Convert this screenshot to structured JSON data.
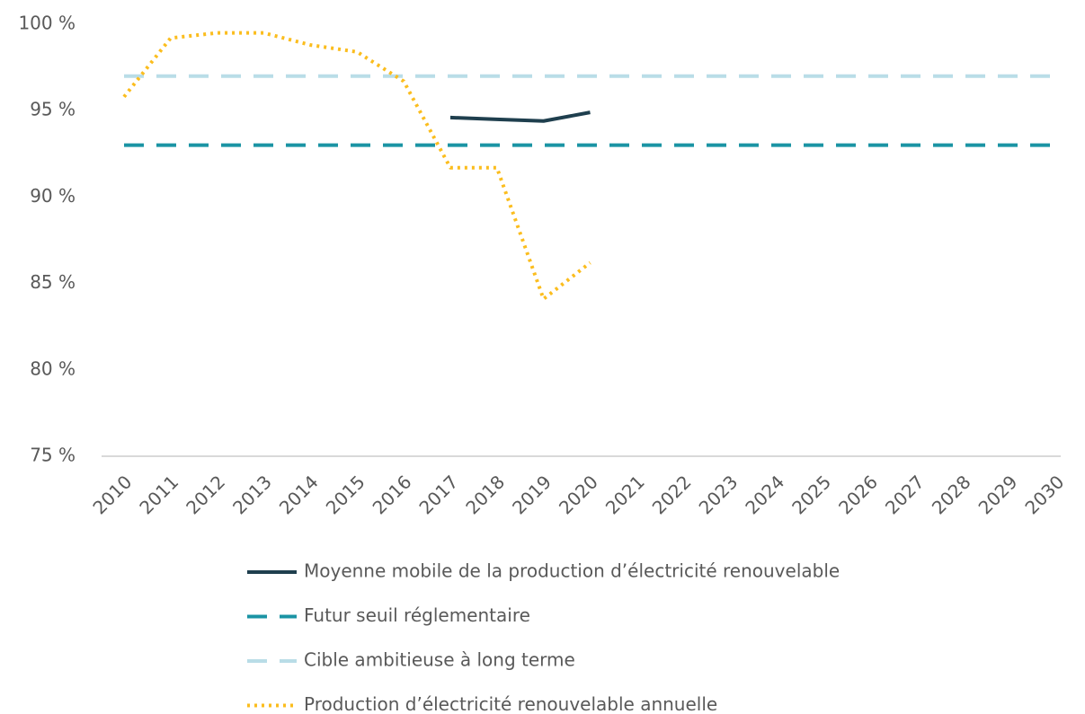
{
  "chart_data": {
    "type": "line",
    "categories": [
      "2010",
      "2011",
      "2012",
      "2013",
      "2014",
      "2015",
      "2016",
      "2017",
      "2018",
      "2019",
      "2020",
      "2021",
      "2022",
      "2023",
      "2024",
      "2025",
      "2026",
      "2027",
      "2028",
      "2029",
      "2030"
    ],
    "series": [
      {
        "name": "Moyenne mobile de la production d’électricité renouvelable",
        "color": "#1f3f4e",
        "dash": "solid",
        "values": [
          null,
          null,
          null,
          null,
          null,
          null,
          null,
          94.6,
          94.5,
          94.4,
          94.9,
          null,
          null,
          null,
          null,
          null,
          null,
          null,
          null,
          null,
          null
        ]
      },
      {
        "name": "Futur seuil réglementaire",
        "color": "#1b94a4",
        "dash": "dashed",
        "values": [
          93,
          93,
          93,
          93,
          93,
          93,
          93,
          93,
          93,
          93,
          93,
          93,
          93,
          93,
          93,
          93,
          93,
          93,
          93,
          93,
          93
        ]
      },
      {
        "name": "Cible ambitieuse à long terme",
        "color": "#b9dde7",
        "dash": "dashed",
        "values": [
          97,
          97,
          97,
          97,
          97,
          97,
          97,
          97,
          97,
          97,
          97,
          97,
          97,
          97,
          97,
          97,
          97,
          97,
          97,
          97,
          97
        ]
      },
      {
        "name": "Production d’électricité renouvelable annuelle",
        "color": "#fbbd1e",
        "dash": "dotted",
        "values": [
          95.8,
          99.2,
          99.5,
          99.5,
          98.8,
          98.4,
          96.7,
          91.7,
          91.7,
          84.1,
          86.2,
          null,
          null,
          null,
          null,
          null,
          null,
          null,
          null,
          null,
          null
        ]
      }
    ],
    "ylim": [
      75,
      100
    ],
    "yticks": [
      {
        "value": 75,
        "label": "75 %"
      },
      {
        "value": 80,
        "label": "80 %"
      },
      {
        "value": 85,
        "label": "85 %"
      },
      {
        "value": 90,
        "label": "90 %"
      },
      {
        "value": 95,
        "label": "95 %"
      },
      {
        "value": 100,
        "label": "100 %"
      }
    ],
    "grid": false,
    "legend": "bottom"
  }
}
